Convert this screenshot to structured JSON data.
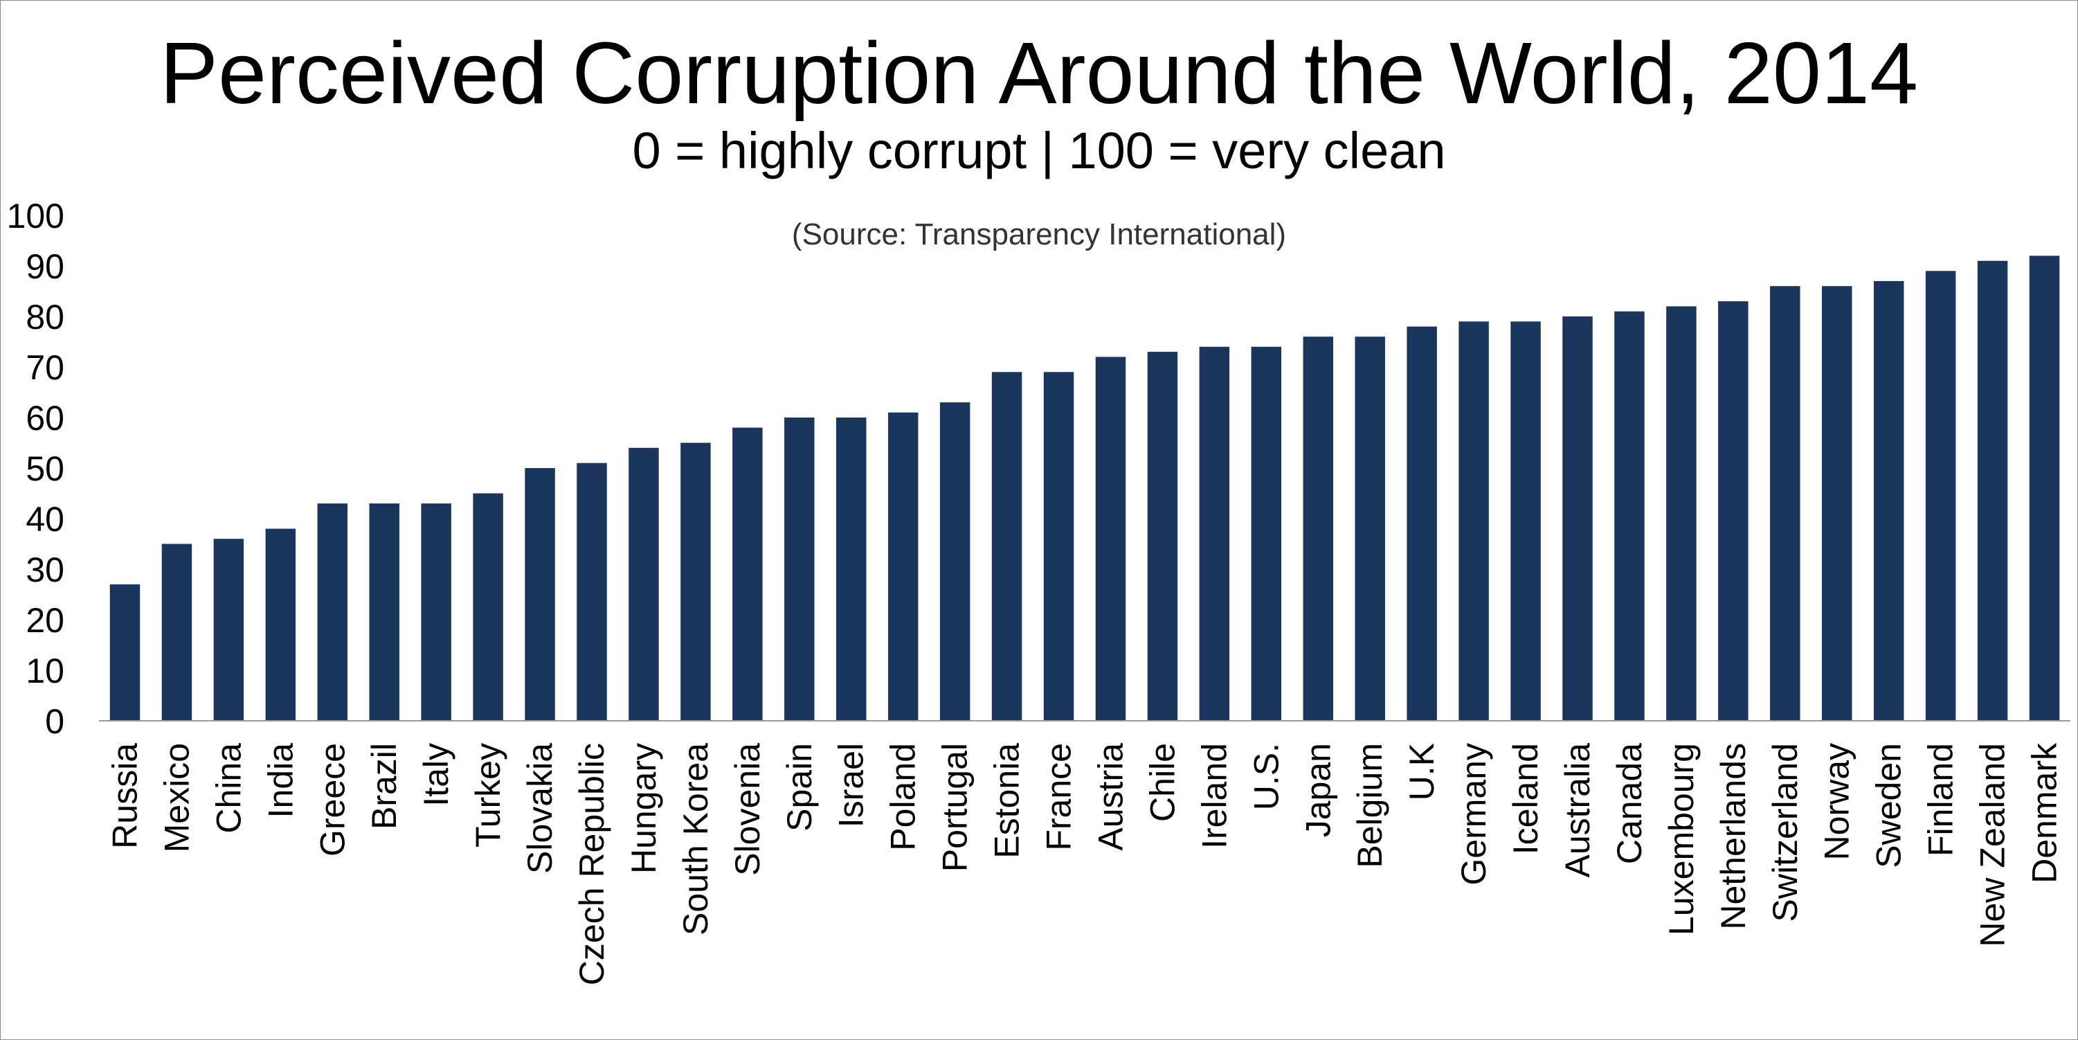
{
  "chart_data": {
    "type": "bar",
    "title": "Perceived Corruption Around the World, 2014",
    "subtitle": "0 = highly corrupt | 100 = very clean",
    "annotation": "(Source: Transparency International)",
    "xlabel": "",
    "ylabel": "",
    "ylim": [
      0,
      100
    ],
    "yticks": [
      0,
      10,
      20,
      30,
      40,
      50,
      60,
      70,
      80,
      90,
      100
    ],
    "grid": false,
    "bar_color": "#1b365d",
    "categories": [
      "Russia",
      "Mexico",
      "China",
      "India",
      "Greece",
      "Brazil",
      "Italy",
      "Turkey",
      "Slovakia",
      "Czech Republic",
      "Hungary",
      "South Korea",
      "Slovenia",
      "Spain",
      "Israel",
      "Poland",
      "Portugal",
      "Estonia",
      "France",
      "Austria",
      "Chile",
      "Ireland",
      "U.S.",
      "Japan",
      "Belgium",
      "U.K",
      "Germany",
      "Iceland",
      "Australia",
      "Canada",
      "Luxembourg",
      "Netherlands",
      "Switzerland",
      "Norway",
      "Sweden",
      "Finland",
      "New Zealand",
      "Denmark"
    ],
    "values": [
      27,
      35,
      36,
      38,
      43,
      43,
      43,
      45,
      50,
      51,
      54,
      55,
      58,
      60,
      60,
      61,
      63,
      69,
      69,
      72,
      73,
      74,
      74,
      76,
      76,
      78,
      79,
      79,
      80,
      81,
      82,
      83,
      86,
      86,
      87,
      89,
      91,
      92
    ]
  }
}
